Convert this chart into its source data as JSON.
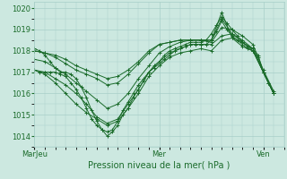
{
  "xlabel": "Pression niveau de la mer( hPa )",
  "xlim": [
    0,
    96
  ],
  "ylim": [
    1013.5,
    1020.3
  ],
  "yticks": [
    1014,
    1015,
    1016,
    1017,
    1018,
    1019,
    1020
  ],
  "xtick_positions": [
    0,
    48,
    88
  ],
  "xtick_labels": [
    "MarJeu",
    "Mer",
    "Ven"
  ],
  "background_color": "#cce8e0",
  "grid_color": "#a8cfc8",
  "line_color": "#1a6b2a",
  "marker": "+",
  "lines": [
    [
      0,
      1018.1,
      2,
      1018.0,
      4,
      1017.8,
      6,
      1017.5,
      8,
      1017.2,
      10,
      1017.0,
      12,
      1017.0,
      14,
      1016.9,
      16,
      1016.7,
      18,
      1016.3,
      20,
      1015.8,
      22,
      1015.2,
      24,
      1014.7,
      26,
      1014.3,
      28,
      1014.0,
      30,
      1014.2,
      32,
      1014.5,
      34,
      1015.0,
      36,
      1015.3,
      38,
      1015.8,
      40,
      1016.2,
      42,
      1016.6,
      44,
      1017.0,
      46,
      1017.3,
      48,
      1017.5,
      50,
      1017.8,
      52,
      1018.0,
      54,
      1018.1,
      56,
      1018.2,
      58,
      1018.3,
      60,
      1018.4,
      62,
      1018.4,
      64,
      1018.4,
      66,
      1018.5,
      68,
      1018.8,
      70,
      1019.2,
      72,
      1019.6,
      74,
      1019.3,
      76,
      1019.0,
      78,
      1018.7,
      80,
      1018.4,
      82,
      1018.2,
      84,
      1018.1,
      86,
      1017.8,
      88,
      1017.0,
      90,
      1016.5,
      92,
      1016.0
    ],
    [
      0,
      1017.1,
      2,
      1017.0,
      4,
      1017.0,
      6,
      1017.0,
      8,
      1017.0,
      10,
      1016.9,
      12,
      1016.8,
      14,
      1016.5,
      16,
      1016.2,
      18,
      1015.8,
      20,
      1015.3,
      22,
      1014.8,
      24,
      1014.5,
      26,
      1014.3,
      28,
      1014.2,
      30,
      1014.3,
      32,
      1014.7,
      34,
      1015.2,
      36,
      1015.6,
      38,
      1016.0,
      40,
      1016.4,
      42,
      1016.7,
      44,
      1017.0,
      46,
      1017.2,
      48,
      1017.4,
      50,
      1017.6,
      52,
      1017.8,
      54,
      1018.0,
      56,
      1018.1,
      58,
      1018.2,
      60,
      1018.3,
      62,
      1018.3,
      64,
      1018.3,
      66,
      1018.3,
      68,
      1018.5,
      70,
      1018.9,
      72,
      1019.4,
      74,
      1019.0,
      76,
      1018.7,
      78,
      1018.5,
      80,
      1018.3,
      82,
      1018.1,
      84,
      1018.0,
      86,
      1017.7,
      88,
      1017.0,
      90,
      1016.5,
      92,
      1016.0
    ],
    [
      0,
      1017.1,
      4,
      1017.0,
      8,
      1016.7,
      12,
      1016.4,
      16,
      1016.0,
      20,
      1015.5,
      24,
      1014.9,
      28,
      1014.6,
      32,
      1014.8,
      36,
      1015.5,
      40,
      1016.2,
      44,
      1017.0,
      48,
      1017.5,
      52,
      1017.9,
      56,
      1018.1,
      60,
      1018.3,
      64,
      1018.3,
      68,
      1018.3,
      72,
      1018.7,
      76,
      1018.8,
      80,
      1018.4,
      84,
      1018.1,
      88,
      1017.0,
      92,
      1016.0
    ],
    [
      0,
      1017.1,
      4,
      1016.9,
      8,
      1016.5,
      12,
      1016.0,
      16,
      1015.5,
      20,
      1015.1,
      24,
      1014.8,
      28,
      1014.5,
      32,
      1014.7,
      36,
      1015.3,
      40,
      1016.0,
      44,
      1016.8,
      48,
      1017.3,
      52,
      1017.7,
      56,
      1017.9,
      60,
      1018.0,
      64,
      1018.1,
      68,
      1018.0,
      72,
      1018.5,
      76,
      1018.6,
      80,
      1018.2,
      84,
      1018.0,
      88,
      1017.0,
      92,
      1016.0
    ],
    [
      0,
      1017.6,
      4,
      1017.5,
      8,
      1017.2,
      12,
      1016.9,
      16,
      1016.5,
      20,
      1016.1,
      24,
      1015.7,
      28,
      1015.3,
      32,
      1015.5,
      36,
      1016.0,
      40,
      1016.7,
      44,
      1017.3,
      48,
      1017.9,
      52,
      1018.2,
      56,
      1018.4,
      60,
      1018.5,
      64,
      1018.5,
      68,
      1018.4,
      72,
      1019.1,
      76,
      1019.0,
      80,
      1018.7,
      84,
      1018.3,
      88,
      1017.1,
      92,
      1016.1
    ],
    [
      0,
      1018.0,
      4,
      1017.9,
      8,
      1017.7,
      12,
      1017.4,
      16,
      1017.1,
      20,
      1016.9,
      24,
      1016.7,
      28,
      1016.4,
      32,
      1016.5,
      36,
      1016.9,
      40,
      1017.4,
      44,
      1017.9,
      48,
      1018.3,
      52,
      1018.4,
      56,
      1018.5,
      60,
      1018.5,
      64,
      1018.5,
      68,
      1018.5,
      72,
      1019.5,
      76,
      1018.8,
      80,
      1018.5,
      84,
      1018.1,
      88,
      1017.0,
      92,
      1016.0
    ],
    [
      0,
      1018.0,
      4,
      1017.9,
      8,
      1017.8,
      12,
      1017.6,
      16,
      1017.3,
      20,
      1017.1,
      24,
      1016.9,
      28,
      1016.7,
      32,
      1016.8,
      36,
      1017.1,
      40,
      1017.5,
      44,
      1018.0,
      48,
      1018.3,
      52,
      1018.4,
      56,
      1018.5,
      60,
      1018.5,
      64,
      1018.5,
      68,
      1018.5,
      72,
      1019.8,
      76,
      1018.6,
      80,
      1018.4,
      84,
      1018.0,
      88,
      1017.0,
      92,
      1016.0
    ]
  ]
}
